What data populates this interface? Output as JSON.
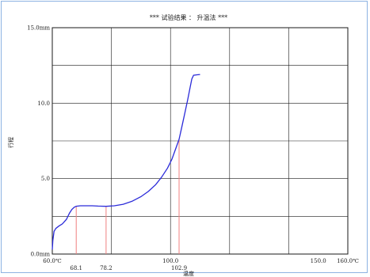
{
  "chart_data": {
    "type": "line",
    "title": "*** 试验结果 ： 升温法 ***",
    "xlabel": "温度",
    "ylabel": "行程",
    "xlim": [
      60.0,
      160.0
    ],
    "ylim": [
      0.0,
      15.0
    ],
    "grid": true,
    "x_ticks": [
      {
        "value": 60.0,
        "label": "60.0℃"
      },
      {
        "value": 100.0,
        "label": "100.0"
      },
      {
        "value": 150.0,
        "label": "150.0"
      },
      {
        "value": 160.0,
        "label": "160.0℃"
      }
    ],
    "x_grid_values": [
      60,
      80,
      100,
      120,
      140,
      160
    ],
    "y_ticks": [
      {
        "value": 0.0,
        "label": "0.0mm"
      },
      {
        "value": 5.0,
        "label": "5.0"
      },
      {
        "value": 10.0,
        "label": "10.0"
      },
      {
        "value": 15.0,
        "label": "15.0mm"
      }
    ],
    "y_grid_values": [
      0.0,
      2.5,
      5.0,
      7.5,
      10.0,
      12.5,
      15.0
    ],
    "series": [
      {
        "color": "#2b2bd9",
        "x": [
          60.0,
          60.2,
          60.6,
          61.2,
          62.2,
          63.4,
          64.8,
          65.8,
          66.6,
          67.4,
          68.1,
          69.5,
          71.5,
          73.5,
          75.5,
          78.2,
          81.0,
          84.0,
          87.0,
          90.0,
          92.5,
          95.0,
          97.0,
          99.0,
          100.5,
          101.8,
          102.9,
          103.8,
          104.8,
          105.8,
          106.6,
          107.2,
          107.8,
          109.0,
          110.0
        ],
        "y": [
          0.3,
          0.9,
          1.5,
          1.7,
          1.85,
          2.0,
          2.3,
          2.7,
          2.95,
          3.1,
          3.17,
          3.2,
          3.2,
          3.2,
          3.18,
          3.16,
          3.2,
          3.3,
          3.5,
          3.8,
          4.15,
          4.6,
          5.1,
          5.7,
          6.3,
          7.0,
          7.6,
          8.4,
          9.3,
          10.2,
          11.0,
          11.6,
          11.85,
          11.88,
          11.9
        ]
      }
    ],
    "markers": [
      {
        "x": 68.1,
        "label": "68.1",
        "color": "#f08080"
      },
      {
        "x": 78.2,
        "label": "78.2",
        "color": "#f08080"
      },
      {
        "x": 102.9,
        "label": "102.9",
        "color": "#f08080"
      }
    ]
  }
}
